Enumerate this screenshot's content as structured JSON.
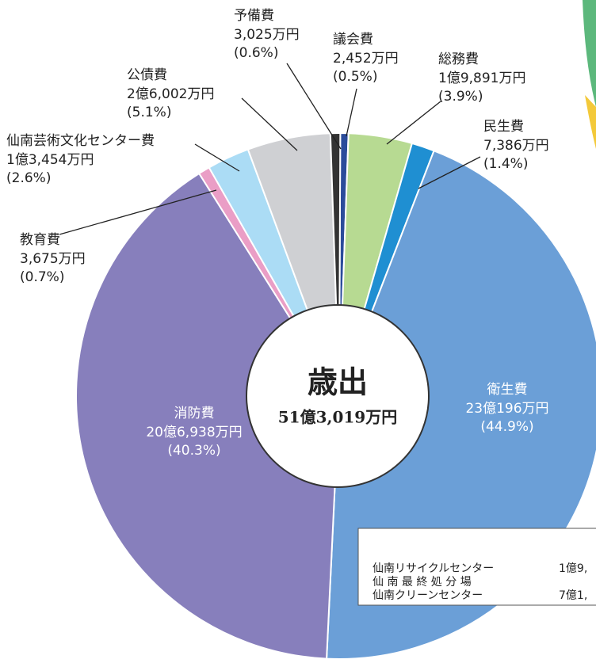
{
  "chart_data": {
    "type": "pie",
    "title": "歳出",
    "total": "51億3,019万円",
    "categories": [
      "議会費",
      "総務費",
      "民生費",
      "衛生費",
      "消防費",
      "教育費",
      "仙南芸術文化センター費",
      "公債費",
      "予備費"
    ],
    "amounts": [
      "2,452万円",
      "1億9,891万円",
      "7,386万円",
      "23億196万円",
      "20億6,938万円",
      "3,675万円",
      "1億3,454万円",
      "2億6,002万円",
      "3,025万円"
    ],
    "values": [
      0.5,
      3.9,
      1.4,
      44.9,
      40.3,
      0.7,
      2.6,
      5.1,
      0.6
    ],
    "value_labels": [
      "(0.5%)",
      "(3.9%)",
      "(1.4%)",
      "(44.9%)",
      "(40.3%)",
      "(0.7%)",
      "(2.6%)",
      "(5.1%)",
      "(0.6%)"
    ],
    "colors": [
      "#2b4c9b",
      "#b7da92",
      "#1f8fd2",
      "#6b9fd7",
      "#877fbc",
      "#ea9ec6",
      "#abdcf5",
      "#cfd0d3",
      "#333333"
    ],
    "note": {
      "rows": [
        [
          "仙南リサイクルセンター",
          "1億9,"
        ],
        [
          "仙 南 最 終 処 分 場",
          ""
        ],
        [
          "仙南クリーンセンター",
          "7億1,"
        ]
      ]
    }
  }
}
